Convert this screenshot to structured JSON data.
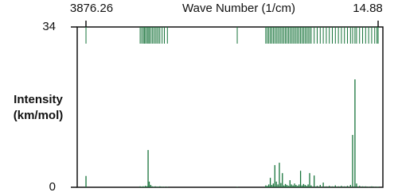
{
  "chart_data": {
    "type": "stem",
    "xlabel": "Wave Number (1/cm)",
    "ylabel": "Intensity (km/mol)",
    "xlim": [
      3992,
      -48
    ],
    "xticks": [
      3876.26,
      14.88
    ],
    "ylim": [
      0,
      34
    ],
    "yticks": [
      0,
      34
    ],
    "rug": true,
    "series": [
      {
        "color": "#17733a",
        "x": [
          3876,
          3160,
          3140,
          3120,
          3105,
          3090,
          3070,
          3055,
          3040,
          3020,
          3000,
          2980,
          2960,
          2940,
          2920,
          2900,
          2870,
          2840,
          2800,
          1877,
          1500,
          1480,
          1460,
          1440,
          1420,
          1400,
          1380,
          1360,
          1340,
          1320,
          1300,
          1280,
          1260,
          1240,
          1220,
          1200,
          1180,
          1160,
          1140,
          1120,
          1100,
          1080,
          1060,
          1040,
          1020,
          1000,
          980,
          960,
          940,
          920,
          900,
          860,
          820,
          780,
          740,
          700,
          660,
          620,
          580,
          540,
          500,
          460,
          420,
          380,
          352,
          321,
          300,
          260,
          220,
          180,
          140,
          100,
          60,
          30,
          14.88
        ],
        "values": [
          2.4,
          0.2,
          0.1,
          0.2,
          0.1,
          0.3,
          0.2,
          7.9,
          1.2,
          0.5,
          0.2,
          0.1,
          0.2,
          0.1,
          0.1,
          0.2,
          0.1,
          0.1,
          0.1,
          0.1,
          0.4,
          0.3,
          0.6,
          2,
          0.5,
          0.8,
          4.7,
          1.2,
          0.6,
          5.2,
          0.9,
          3,
          0.4,
          0.7,
          0.5,
          0.3,
          1.5,
          0.6,
          0.4,
          0.8,
          0.5,
          0.3,
          0.6,
          3.5,
          0.4,
          0.7,
          0.5,
          0.3,
          0.6,
          3,
          0.4,
          2.5,
          0.3,
          0.5,
          1,
          0.2,
          0.3,
          0.2,
          0.4,
          0.2,
          0.3,
          0.2,
          0.3,
          0.5,
          11.1,
          22.9,
          0.8,
          0.3,
          0.2,
          0.2,
          0.1,
          0.2,
          0.1,
          0.1,
          0.1
        ]
      }
    ]
  }
}
